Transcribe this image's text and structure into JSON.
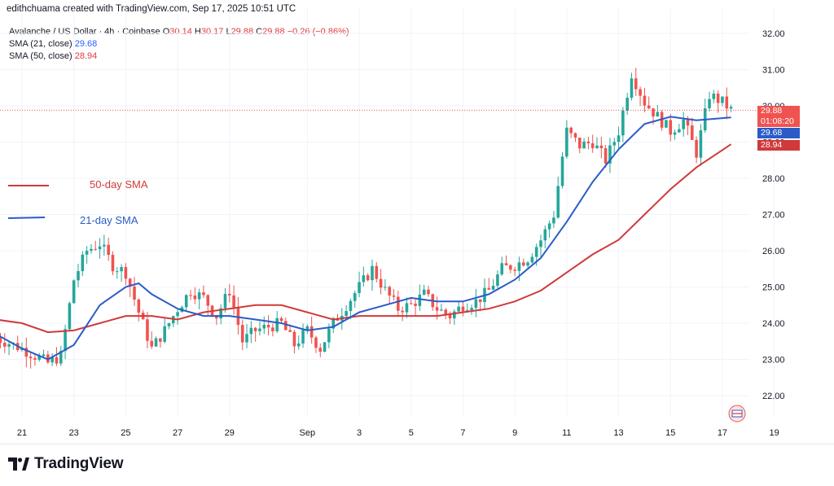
{
  "header": {
    "creator_line": "edithchuama created with TradingView.com, Sep 17, 2025 10:51 UTC",
    "symbol_line": "Avalanche / US Dollar · 4h · Coinbase",
    "ohlc": [
      {
        "k": "O",
        "v": "30.14"
      },
      {
        "k": "H",
        "v": "30.17"
      },
      {
        "k": "L",
        "v": "29.88"
      },
      {
        "k": "C",
        "v": "29.88"
      }
    ],
    "change": "−0.26 (−0.86%)",
    "sma21_label": "SMA (21, close)",
    "sma21_value": "29.68",
    "sma50_label": "SMA (50, close)",
    "sma50_value": "28.94"
  },
  "annotations": {
    "sma50_text": "50-day SMA",
    "sma21_text": "21-day SMA"
  },
  "price_tags": {
    "last_price": "29.88",
    "countdown": "01:08:20",
    "sma21": "29.68",
    "sma50": "28.94"
  },
  "colors": {
    "up": "#26a69a",
    "down": "#ef5350",
    "sma21": "#2a5cc8",
    "sma50": "#d03a3a",
    "grid": "#f0f3fa"
  },
  "branding": {
    "logo_text": "TradingView"
  },
  "chart_data": {
    "type": "candlestick",
    "interval": "4h",
    "ylim": [
      21.5,
      32.4
    ],
    "yticks": [
      "22.00",
      "23.00",
      "24.00",
      "25.00",
      "26.00",
      "27.00",
      "28.00",
      "29.00",
      "30.00",
      "31.00",
      "32.00"
    ],
    "xticks": [
      "21",
      "23",
      "25",
      "27",
      "29",
      "Sep",
      "3",
      "5",
      "7",
      "9",
      "11",
      "13",
      "15",
      "17",
      "19"
    ],
    "close_anchors": [
      {
        "date": "Aug 20",
        "close": 23.6
      },
      {
        "date": "Aug 21",
        "close": 23.3
      },
      {
        "date": "Aug 22",
        "close": 22.9
      },
      {
        "date": "Aug 22 12:00",
        "close": 23.1
      },
      {
        "date": "Aug 23",
        "close": 25.2
      },
      {
        "date": "Aug 23 12:00",
        "close": 26.0
      },
      {
        "date": "Aug 24",
        "close": 26.2
      },
      {
        "date": "Aug 24 12:00",
        "close": 25.6
      },
      {
        "date": "Aug 25",
        "close": 25.4
      },
      {
        "date": "Aug 25 12:00",
        "close": 24.3
      },
      {
        "date": "Aug 26",
        "close": 23.3
      },
      {
        "date": "Aug 26 12:00",
        "close": 23.8
      },
      {
        "date": "Aug 27",
        "close": 24.4
      },
      {
        "date": "Aug 27 12:00",
        "close": 24.9
      },
      {
        "date": "Aug 28",
        "close": 24.7
      },
      {
        "date": "Aug 28 12:00",
        "close": 24.2
      },
      {
        "date": "Aug 29",
        "close": 24.9
      },
      {
        "date": "Aug 29 12:00",
        "close": 23.5
      },
      {
        "date": "Aug 30",
        "close": 23.8
      },
      {
        "date": "Aug 30 12:00",
        "close": 23.9
      },
      {
        "date": "Aug 31",
        "close": 24.0
      },
      {
        "date": "Aug 31 12:00",
        "close": 23.4
      },
      {
        "date": "Sep 1",
        "close": 23.8
      },
      {
        "date": "Sep 1 12:00",
        "close": 23.3
      },
      {
        "date": "Sep 2",
        "close": 24.0
      },
      {
        "date": "Sep 2 12:00",
        "close": 24.5
      },
      {
        "date": "Sep 3",
        "close": 25.0
      },
      {
        "date": "Sep 3 12:00",
        "close": 25.5
      },
      {
        "date": "Sep 4",
        "close": 24.9
      },
      {
        "date": "Sep 4 12:00",
        "close": 24.4
      },
      {
        "date": "Sep 5",
        "close": 24.5
      },
      {
        "date": "Sep 5 12:00",
        "close": 24.8
      },
      {
        "date": "Sep 6",
        "close": 24.4
      },
      {
        "date": "Sep 6 12:00",
        "close": 24.2
      },
      {
        "date": "Sep 7",
        "close": 24.5
      },
      {
        "date": "Sep 7 12:00",
        "close": 24.6
      },
      {
        "date": "Sep 8",
        "close": 24.9
      },
      {
        "date": "Sep 8 12:00",
        "close": 25.5
      },
      {
        "date": "Sep 9",
        "close": 25.6
      },
      {
        "date": "Sep 9 12:00",
        "close": 25.8
      },
      {
        "date": "Sep 10",
        "close": 26.3
      },
      {
        "date": "Sep 10 12:00",
        "close": 27.0
      },
      {
        "date": "Sep 10 20:00",
        "close": 28.6
      },
      {
        "date": "Sep 11",
        "close": 29.3
      },
      {
        "date": "Sep 11 12:00",
        "close": 28.9
      },
      {
        "date": "Sep 12",
        "close": 29.0
      },
      {
        "date": "Sep 12 12:00",
        "close": 28.5
      },
      {
        "date": "Sep 13",
        "close": 29.3
      },
      {
        "date": "Sep 13 12:00",
        "close": 30.9
      },
      {
        "date": "Sep 14",
        "close": 30.1
      },
      {
        "date": "Sep 14 12:00",
        "close": 29.7
      },
      {
        "date": "Sep 15",
        "close": 29.3
      },
      {
        "date": "Sep 15 12:00",
        "close": 29.6
      },
      {
        "date": "Sep 16",
        "close": 28.7
      },
      {
        "date": "Sep 16 12:00",
        "close": 30.3
      },
      {
        "date": "Sep 17",
        "close": 30.1
      },
      {
        "date": "Sep 17 08:00",
        "close": 29.88
      }
    ],
    "sma21": [
      {
        "date": "Aug 20",
        "value": 23.7
      },
      {
        "date": "Aug 21",
        "value": 23.3
      },
      {
        "date": "Aug 22",
        "value": 23.0
      },
      {
        "date": "Aug 23",
        "value": 23.4
      },
      {
        "date": "Aug 24",
        "value": 24.5
      },
      {
        "date": "Aug 25",
        "value": 25.0
      },
      {
        "date": "Aug 25 12:00",
        "value": 25.1
      },
      {
        "date": "Aug 26",
        "value": 24.8
      },
      {
        "date": "Aug 27",
        "value": 24.4
      },
      {
        "date": "Aug 28",
        "value": 24.2
      },
      {
        "date": "Aug 29",
        "value": 24.2
      },
      {
        "date": "Aug 30",
        "value": 24.1
      },
      {
        "date": "Aug 31",
        "value": 24.0
      },
      {
        "date": "Sep 1",
        "value": 23.8
      },
      {
        "date": "Sep 2",
        "value": 23.9
      },
      {
        "date": "Sep 3",
        "value": 24.3
      },
      {
        "date": "Sep 4",
        "value": 24.5
      },
      {
        "date": "Sep 5",
        "value": 24.7
      },
      {
        "date": "Sep 6",
        "value": 24.6
      },
      {
        "date": "Sep 7",
        "value": 24.6
      },
      {
        "date": "Sep 8",
        "value": 24.8
      },
      {
        "date": "Sep 9",
        "value": 25.2
      },
      {
        "date": "Sep 10",
        "value": 25.8
      },
      {
        "date": "Sep 11",
        "value": 26.8
      },
      {
        "date": "Sep 12",
        "value": 27.9
      },
      {
        "date": "Sep 13",
        "value": 28.8
      },
      {
        "date": "Sep 14",
        "value": 29.5
      },
      {
        "date": "Sep 15",
        "value": 29.7
      },
      {
        "date": "Sep 16",
        "value": 29.6
      },
      {
        "date": "Sep 17 08:00",
        "value": 29.68
      }
    ],
    "sma50": [
      {
        "date": "Aug 20",
        "value": 24.1
      },
      {
        "date": "Aug 21",
        "value": 24.0
      },
      {
        "date": "Aug 22",
        "value": 23.75
      },
      {
        "date": "Aug 23",
        "value": 23.8
      },
      {
        "date": "Aug 24",
        "value": 24.0
      },
      {
        "date": "Aug 25",
        "value": 24.2
      },
      {
        "date": "Aug 26",
        "value": 24.2
      },
      {
        "date": "Aug 27",
        "value": 24.1
      },
      {
        "date": "Aug 28",
        "value": 24.3
      },
      {
        "date": "Aug 29",
        "value": 24.4
      },
      {
        "date": "Aug 30",
        "value": 24.5
      },
      {
        "date": "Aug 31",
        "value": 24.5
      },
      {
        "date": "Sep 1",
        "value": 24.3
      },
      {
        "date": "Sep 2",
        "value": 24.1
      },
      {
        "date": "Sep 3",
        "value": 24.2
      },
      {
        "date": "Sep 4",
        "value": 24.2
      },
      {
        "date": "Sep 5",
        "value": 24.2
      },
      {
        "date": "Sep 6",
        "value": 24.2
      },
      {
        "date": "Sep 7",
        "value": 24.3
      },
      {
        "date": "Sep 8",
        "value": 24.4
      },
      {
        "date": "Sep 9",
        "value": 24.6
      },
      {
        "date": "Sep 10",
        "value": 24.9
      },
      {
        "date": "Sep 11",
        "value": 25.4
      },
      {
        "date": "Sep 12",
        "value": 25.9
      },
      {
        "date": "Sep 13",
        "value": 26.3
      },
      {
        "date": "Sep 14",
        "value": 27.0
      },
      {
        "date": "Sep 15",
        "value": 27.7
      },
      {
        "date": "Sep 16",
        "value": 28.3
      },
      {
        "date": "Sep 17 08:00",
        "value": 28.94
      }
    ]
  }
}
